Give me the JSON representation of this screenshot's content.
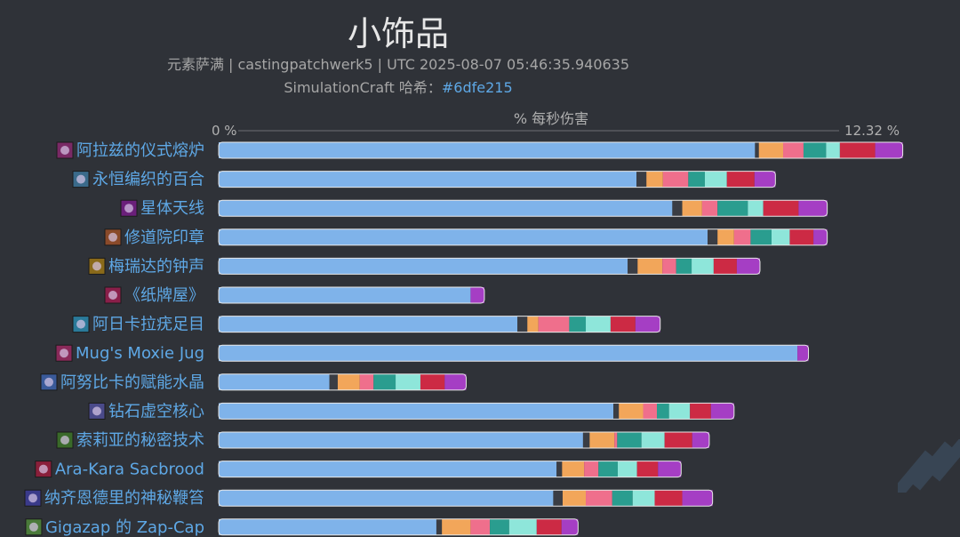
{
  "header": {
    "title": "小饰品",
    "subtitle": "元素萨满 | castingpatchwerk5 | UTC 2025-08-07 05:46:35.940635",
    "hash_prefix": "SimulationCraft 哈希：",
    "hash_value": "#6dfe215"
  },
  "colors": {
    "background": "#2f3238",
    "base_bar": "#7fb3ea",
    "segment_palette": [
      "#3a3d44",
      "#f2a65a",
      "#ef6f8c",
      "#2a9d8f",
      "#8ee6da",
      "#cc2a44",
      "#a53ec4"
    ],
    "label": "#5ea8e6"
  },
  "chart_data": {
    "type": "bar",
    "orientation": "horizontal",
    "stacked": true,
    "title": "小饰品",
    "axis": {
      "label": "% 每秒伤害",
      "min_label": "0 %",
      "max_label": "12.32 %",
      "xlim": [
        0,
        12.32
      ]
    },
    "categories": [
      {
        "name": "阿拉兹的仪式熔炉",
        "icon": "ritual-forge-icon"
      },
      {
        "name": "永恒编织的百合",
        "icon": "everwoven-lily-icon"
      },
      {
        "name": "星体天线",
        "icon": "astral-antenna-icon"
      },
      {
        "name": "修道院印章",
        "icon": "abbey-seal-icon"
      },
      {
        "name": "梅瑞达的钟声",
        "icon": "chime-icon"
      },
      {
        "name": "《纸牌屋》",
        "icon": "house-of-cards-icon"
      },
      {
        "name": "阿日卡拉疣足目",
        "icon": "spider-icon"
      },
      {
        "name": "Mug's Moxie Jug",
        "icon": "moxie-jug-icon"
      },
      {
        "name": "阿努比卡的赋能水晶",
        "icon": "crystal-icon"
      },
      {
        "name": "钻石虚空核心",
        "icon": "void-core-icon"
      },
      {
        "name": "索莉亚的秘密技术",
        "icon": "arcane-tech-icon"
      },
      {
        "name": "Ara-Kara Sacbrood",
        "icon": "sacbrood-icon"
      },
      {
        "name": "纳齐恩德里的神秘鞭笞",
        "icon": "mystic-lash-icon"
      },
      {
        "name": "Gigazap 的 Zap-Cap",
        "icon": "zap-cap-icon"
      }
    ],
    "series": [
      {
        "values": [
          9.73,
          7.58,
          8.23,
          8.87,
          7.42,
          4.57,
          5.42,
          10.5,
          2.01,
          7.16,
          6.61,
          6.13,
          6.07,
          3.95
        ]
      },
      {
        "values": [
          0.07,
          0.18,
          0.18,
          0.18,
          0.18,
          0.0,
          0.18,
          0.0,
          0.15,
          0.1,
          0.12,
          0.1,
          0.17,
          0.1
        ]
      },
      {
        "values": [
          0.44,
          0.3,
          0.36,
          0.3,
          0.45,
          0.0,
          0.2,
          0.0,
          0.4,
          0.44,
          0.45,
          0.4,
          0.42,
          0.52
        ]
      },
      {
        "values": [
          0.37,
          0.46,
          0.28,
          0.3,
          0.25,
          0.0,
          0.56,
          0.0,
          0.25,
          0.25,
          0.05,
          0.26,
          0.48,
          0.35
        ]
      },
      {
        "values": [
          0.41,
          0.3,
          0.55,
          0.38,
          0.28,
          0.0,
          0.3,
          0.0,
          0.4,
          0.22,
          0.44,
          0.35,
          0.37,
          0.35
        ]
      },
      {
        "values": [
          0.25,
          0.4,
          0.28,
          0.33,
          0.4,
          0.0,
          0.45,
          0.0,
          0.45,
          0.38,
          0.42,
          0.35,
          0.4,
          0.5
        ]
      },
      {
        "values": [
          0.64,
          0.5,
          0.64,
          0.43,
          0.42,
          0.0,
          0.45,
          0.0,
          0.44,
          0.38,
          0.5,
          0.38,
          0.5,
          0.45
        ]
      },
      {
        "values": [
          0.5,
          0.38,
          0.52,
          0.25,
          0.42,
          0.25,
          0.45,
          0.2,
          0.39,
          0.42,
          0.31,
          0.42,
          0.55,
          0.3
        ]
      }
    ]
  }
}
